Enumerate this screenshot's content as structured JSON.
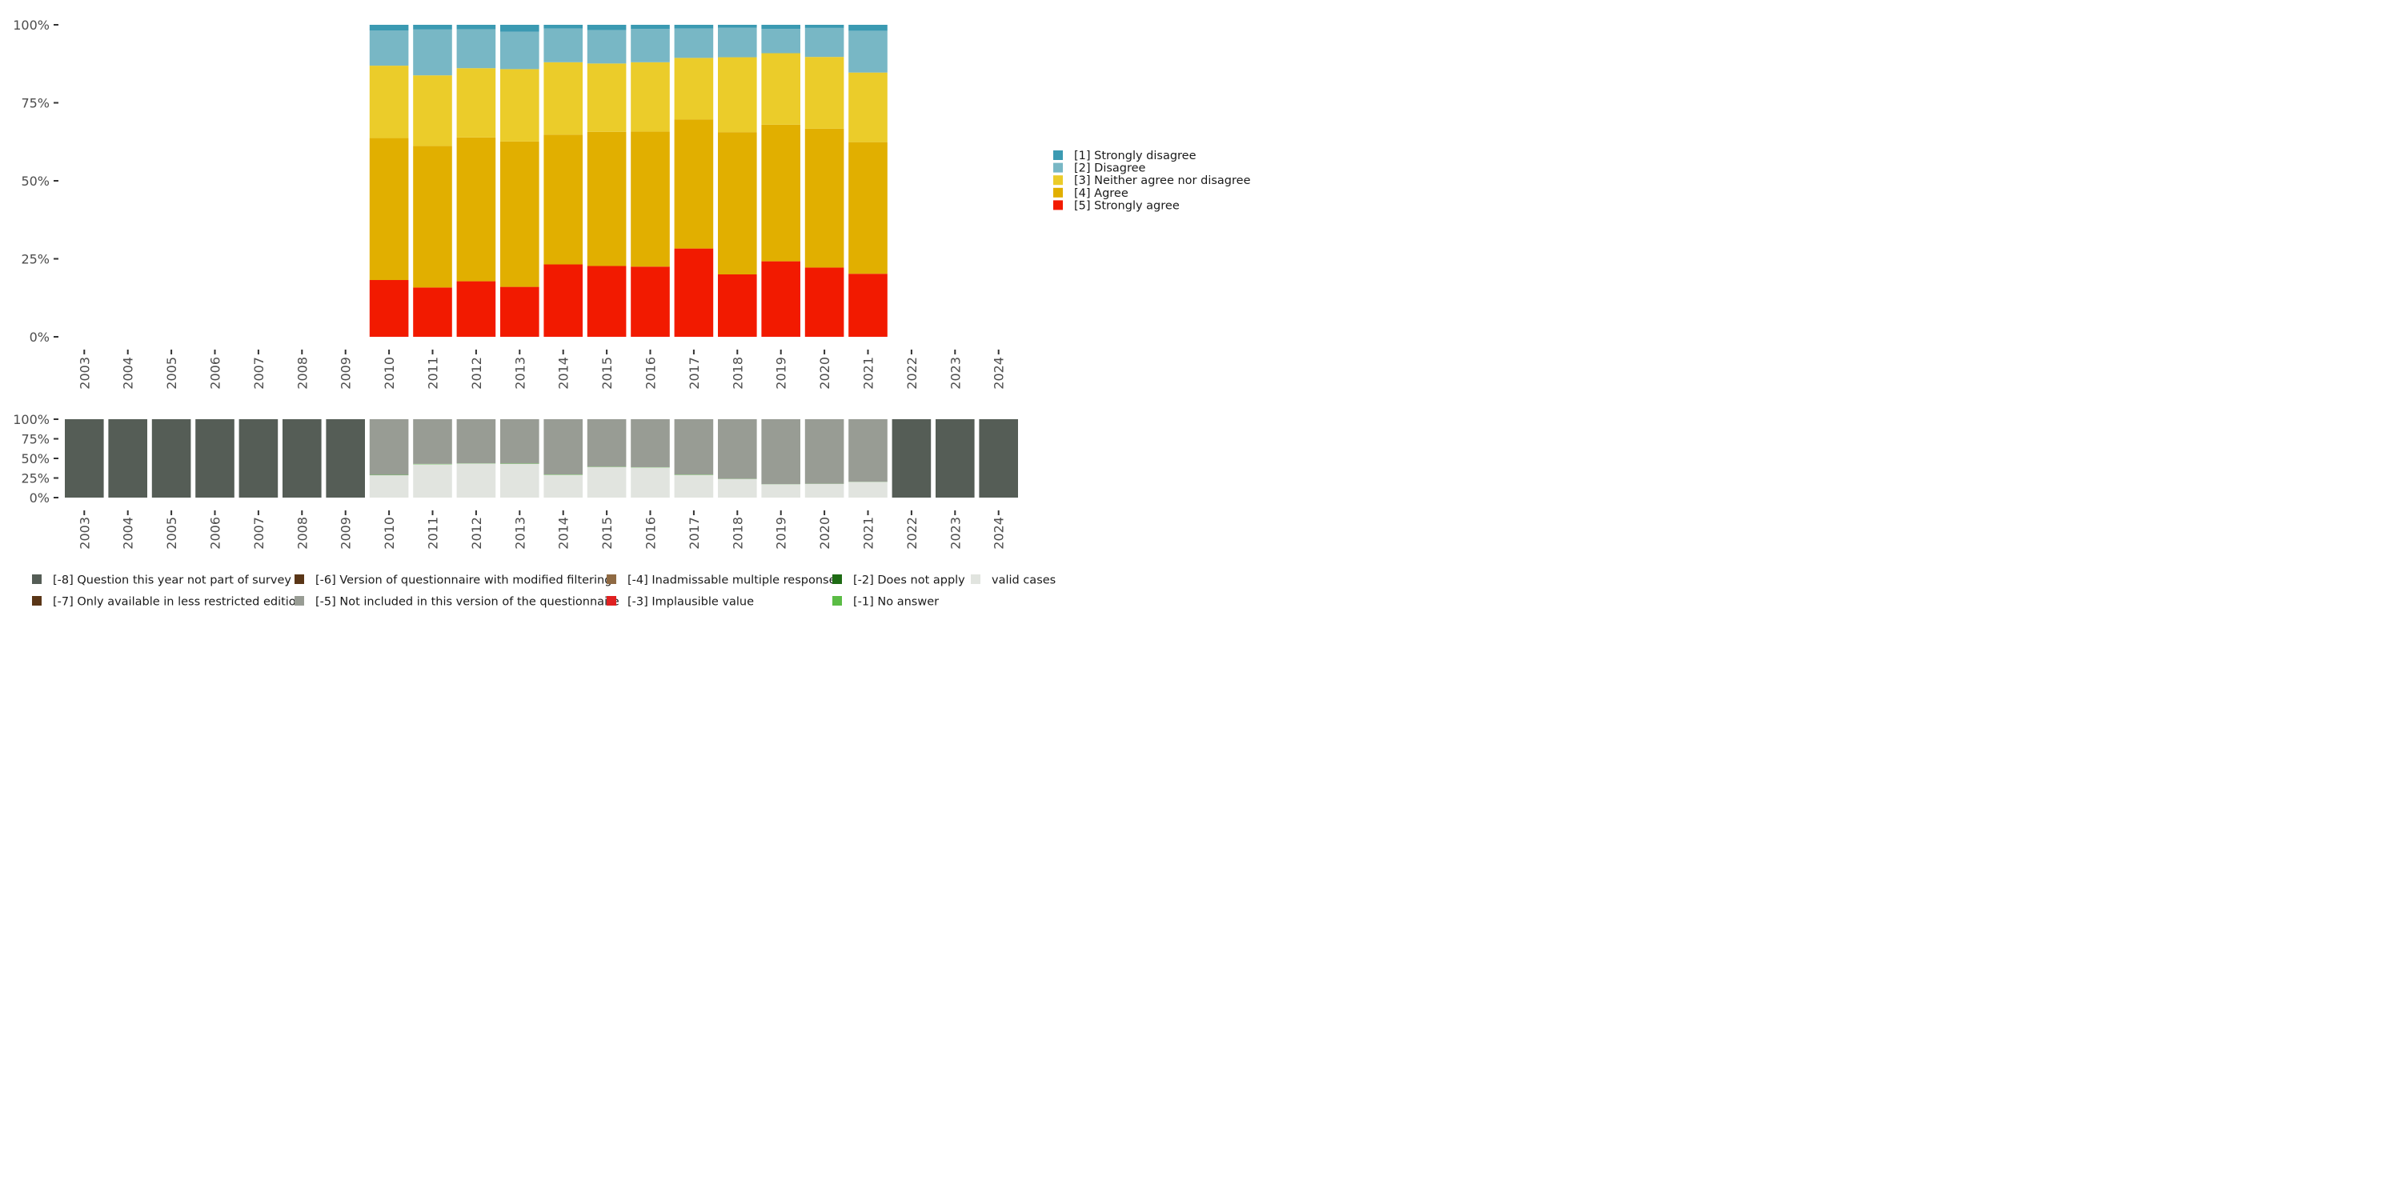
{
  "chart_data": [
    {
      "type": "bar",
      "stacked": true,
      "title": "",
      "xlabel": "",
      "ylabel": "",
      "ylim": [
        0,
        100
      ],
      "y_ticks": [
        "0%",
        "25%",
        "50%",
        "75%",
        "100%"
      ],
      "categories": [
        "2003",
        "2004",
        "2005",
        "2006",
        "2007",
        "2008",
        "2009",
        "2010",
        "2011",
        "2012",
        "2013",
        "2014",
        "2015",
        "2016",
        "2017",
        "2018",
        "2019",
        "2020",
        "2021",
        "2022",
        "2023",
        "2024"
      ],
      "legend_position": "right",
      "series": [
        {
          "name": "[5] Strongly agree",
          "color": "#f21a00",
          "values": [
            null,
            null,
            null,
            null,
            null,
            null,
            null,
            18.2,
            15.8,
            17.8,
            16.0,
            23.2,
            22.7,
            22.5,
            28.3,
            20.0,
            24.2,
            22.2,
            20.2,
            null,
            null,
            null
          ]
        },
        {
          "name": "[4] Agree",
          "color": "#e1af00",
          "values": [
            null,
            null,
            null,
            null,
            null,
            null,
            null,
            45.5,
            45.4,
            46.1,
            46.6,
            41.6,
            43.0,
            43.3,
            41.4,
            45.6,
            43.8,
            44.5,
            42.2,
            null,
            null,
            null
          ]
        },
        {
          "name": "[3] Neither agree nor disagree",
          "color": "#ebcc2a",
          "values": [
            null,
            null,
            null,
            null,
            null,
            null,
            null,
            23.2,
            22.6,
            22.2,
            23.2,
            23.2,
            21.9,
            22.2,
            19.7,
            24.0,
            22.9,
            23.0,
            22.3,
            null,
            null,
            null
          ]
        },
        {
          "name": "[2] Disagree",
          "color": "#78b7c5",
          "values": [
            null,
            null,
            null,
            null,
            null,
            null,
            null,
            11.3,
            14.7,
            12.5,
            12.0,
            10.8,
            10.7,
            10.7,
            9.4,
            9.5,
            7.8,
            9.3,
            13.4,
            null,
            null,
            null
          ]
        },
        {
          "name": "[1] Strongly disagree",
          "color": "#3b9ab2",
          "values": [
            null,
            null,
            null,
            null,
            null,
            null,
            null,
            1.8,
            1.5,
            1.4,
            2.2,
            1.2,
            1.7,
            1.3,
            1.2,
            0.9,
            1.3,
            1.0,
            1.9,
            null,
            null,
            null
          ]
        }
      ],
      "legend_order": [
        "[1] Strongly disagree",
        "[2] Disagree",
        "[3] Neither agree nor disagree",
        "[4] Agree",
        "[5] Strongly agree"
      ]
    },
    {
      "type": "bar",
      "stacked": true,
      "title": "",
      "xlabel": "",
      "ylabel": "",
      "ylim": [
        0,
        100
      ],
      "y_ticks": [
        "0%",
        "25%",
        "50%",
        "75%",
        "100%"
      ],
      "categories": [
        "2003",
        "2004",
        "2005",
        "2006",
        "2007",
        "2008",
        "2009",
        "2010",
        "2011",
        "2012",
        "2013",
        "2014",
        "2015",
        "2016",
        "2017",
        "2018",
        "2019",
        "2020",
        "2021",
        "2022",
        "2023",
        "2024"
      ],
      "legend_position": "bottom",
      "series": [
        {
          "name": "valid cases",
          "color": "#e1e4df",
          "values": [
            0,
            0,
            0,
            0,
            0,
            0,
            0,
            28.5,
            42.5,
            43.5,
            43.0,
            29.0,
            39.0,
            38.5,
            28.8,
            23.8,
            17.0,
            17.5,
            20.0,
            0,
            0,
            0
          ]
        },
        {
          "name": "[-1] No answer",
          "color": "#5bbc45",
          "values": [
            0,
            0,
            0,
            0,
            0,
            0,
            0,
            0.5,
            0.5,
            0.3,
            0.5,
            0.5,
            0.4,
            0.3,
            0.5,
            0.2,
            0.2,
            0.2,
            0.2,
            0,
            0,
            0
          ]
        },
        {
          "name": "[-5] Not included in this version of the questionnaire",
          "color": "#989c94",
          "values": [
            0,
            0,
            0,
            0,
            0,
            0,
            0,
            71.0,
            57.0,
            56.2,
            56.5,
            70.5,
            60.6,
            61.2,
            70.7,
            76.0,
            82.8,
            82.3,
            79.8,
            0,
            0,
            0
          ]
        },
        {
          "name": "[-8] Question this year not part of survey",
          "color": "#555d56",
          "values": [
            100,
            100,
            100,
            100,
            100,
            100,
            100,
            0,
            0,
            0,
            0,
            0,
            0,
            0,
            0,
            0,
            0,
            0,
            0,
            100,
            100,
            100
          ]
        }
      ],
      "legend_items": [
        {
          "name": "[-8] Question this year not part of survey",
          "color": "#555d56"
        },
        {
          "name": "[-7] Only available in less restricted edition",
          "color": "#5a3617"
        },
        {
          "name": "[-6] Version of questionnaire with modified filtering",
          "color": "#5a3617"
        },
        {
          "name": "[-5] Not included in this version of the questionnaire",
          "color": "#989c94"
        },
        {
          "name": "[-4] Inadmissable multiple response",
          "color": "#8f6a43"
        },
        {
          "name": "[-3] Implausible value",
          "color": "#e02020"
        },
        {
          "name": "[-2] Does not apply",
          "color": "#1e6b14"
        },
        {
          "name": "[-1] No answer",
          "color": "#5bbc45"
        },
        {
          "name": "valid cases",
          "color": "#e1e4df"
        }
      ]
    }
  ]
}
